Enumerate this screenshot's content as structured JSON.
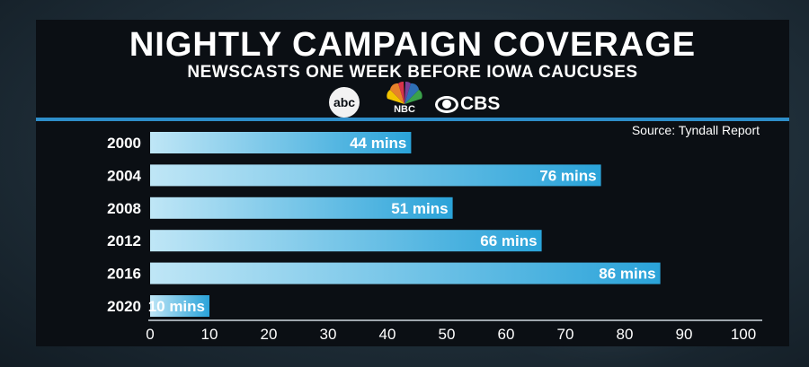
{
  "header": {
    "title": "Nightly Campaign Coverage",
    "subtitle": "NEWSCASTS ONE WEEK BEFORE IOWA CAUCUSES",
    "source": "Source: Tyndall Report"
  },
  "logos": {
    "abc": "abc",
    "nbc": "NBC",
    "cbs": "CBS"
  },
  "colors": {
    "bar_light": "#bfe6f6",
    "bar_dark": "#2aa3d9",
    "accent_rule": "#2e8ec9",
    "panel": "#0b0f14"
  },
  "chart_data": {
    "type": "bar",
    "orientation": "horizontal",
    "title": "Nightly Campaign Coverage",
    "subtitle": "NEWSCASTS ONE WEEK BEFORE IOWA CAUCUSES",
    "categories": [
      "2000",
      "2004",
      "2008",
      "2012",
      "2016",
      "2020"
    ],
    "values": [
      44,
      76,
      51,
      66,
      86,
      10
    ],
    "value_labels": [
      "44 mins",
      "76 mins",
      "51 mins",
      "66 mins",
      "86 mins",
      "10 mins"
    ],
    "xlim": [
      0,
      100
    ],
    "xticks": [
      0,
      10,
      20,
      30,
      40,
      50,
      60,
      70,
      80,
      90,
      100
    ],
    "grid": false
  }
}
